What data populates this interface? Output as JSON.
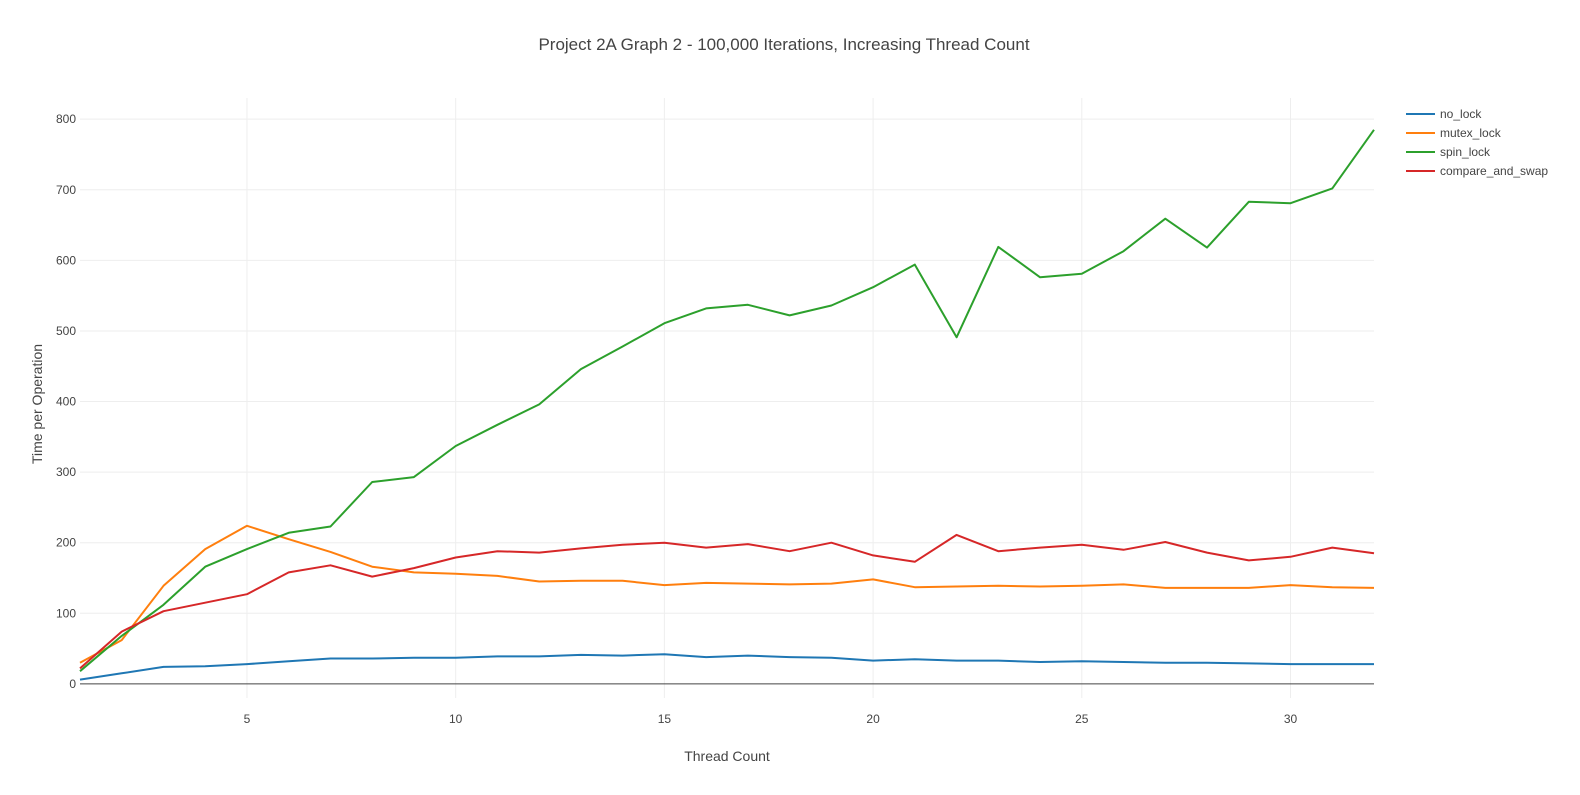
{
  "chart_data": {
    "type": "line",
    "title": "Project 2A Graph 2 - 100,000 Iterations, Increasing Thread Count",
    "xlabel": "Thread Count",
    "ylabel": "Time per Operation",
    "xlim": [
      1,
      32
    ],
    "ylim": [
      -20,
      830
    ],
    "x_ticks": [
      5,
      10,
      15,
      20,
      25,
      30
    ],
    "y_ticks": [
      0,
      100,
      200,
      300,
      400,
      500,
      600,
      700,
      800
    ],
    "grid": true,
    "legend_position": "top-right",
    "x": [
      1,
      2,
      3,
      4,
      5,
      6,
      7,
      8,
      9,
      10,
      11,
      12,
      13,
      14,
      15,
      16,
      17,
      18,
      19,
      20,
      21,
      22,
      23,
      24,
      25,
      26,
      27,
      28,
      29,
      30,
      31,
      32
    ],
    "series": [
      {
        "name": "no_lock",
        "color": "#1f77b4",
        "values": [
          6,
          15,
          24,
          25,
          28,
          32,
          36,
          36,
          37,
          37,
          39,
          39,
          41,
          40,
          42,
          38,
          40,
          38,
          37,
          33,
          35,
          33,
          33,
          31,
          32,
          31,
          30,
          30,
          29,
          28,
          28,
          28
        ]
      },
      {
        "name": "mutex_lock",
        "color": "#ff7f0e",
        "values": [
          30,
          62,
          139,
          191,
          224,
          205,
          187,
          166,
          158,
          156,
          153,
          145,
          146,
          146,
          140,
          143,
          142,
          141,
          142,
          148,
          137,
          138,
          139,
          138,
          139,
          141,
          136,
          136,
          136,
          140,
          137,
          136
        ]
      },
      {
        "name": "spin_lock",
        "color": "#2ca02c",
        "values": [
          18,
          68,
          112,
          166,
          191,
          214,
          223,
          286,
          293,
          337,
          367,
          396,
          446,
          478,
          511,
          532,
          537,
          522,
          536,
          562,
          594,
          491,
          619,
          576,
          581,
          613,
          659,
          618,
          683,
          681,
          702,
          785
        ]
      },
      {
        "name": "compare_and_swap",
        "color": "#d62728",
        "values": [
          22,
          74,
          103,
          115,
          127,
          158,
          168,
          152,
          164,
          179,
          188,
          186,
          192,
          197,
          200,
          193,
          198,
          188,
          200,
          182,
          173,
          211,
          188,
          193,
          197,
          190,
          201,
          186,
          175,
          180,
          193,
          185
        ]
      }
    ]
  }
}
